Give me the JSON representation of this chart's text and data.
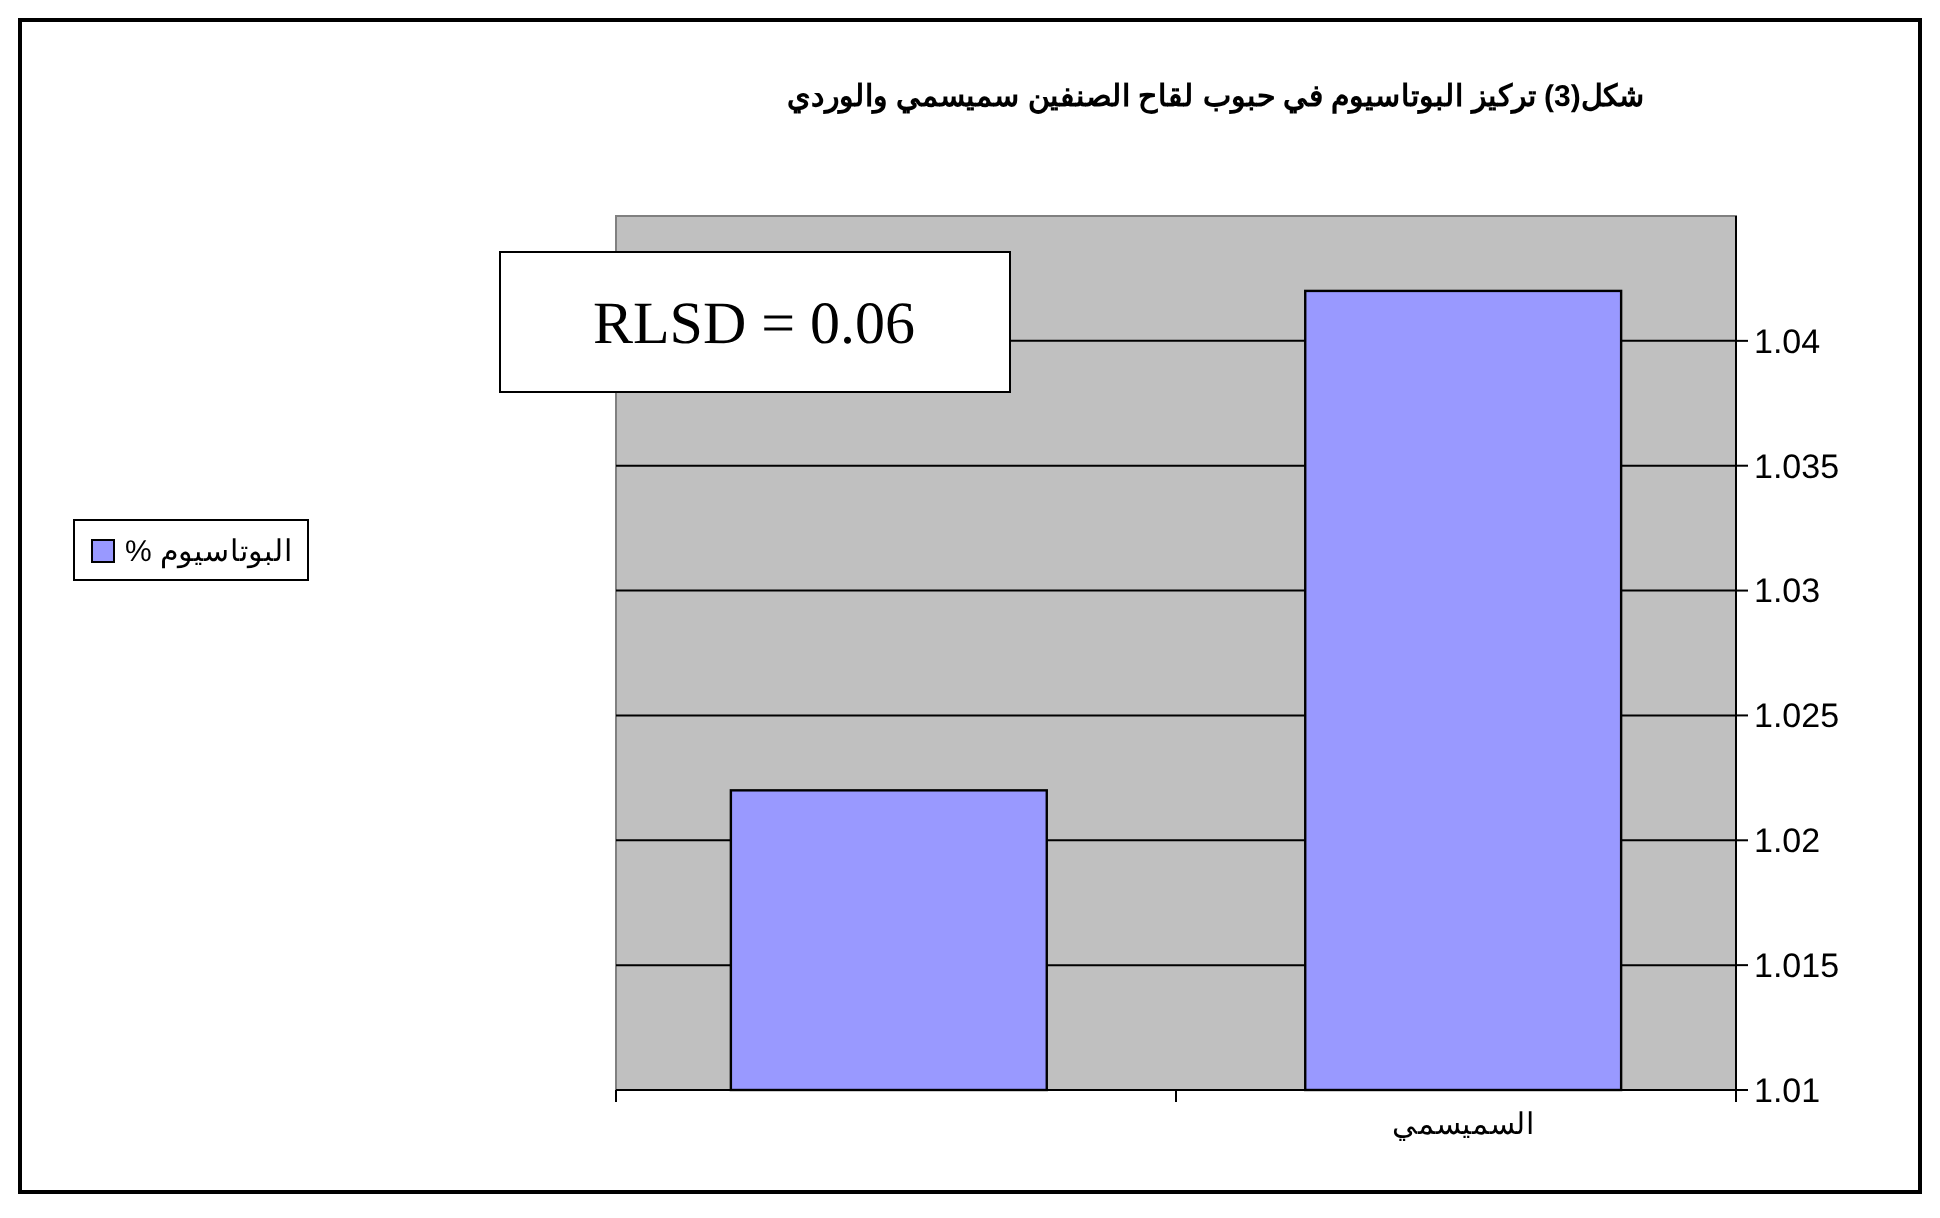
{
  "chart_data": {
    "type": "bar",
    "title": "شكل(3) تركيز البوتاسيوم في حبوب لقاح الصنفين سميسمي والوردي",
    "categories": [
      null,
      "السميسمي"
    ],
    "series": [
      {
        "name": "البوتاسيوم %",
        "color": "#9999ff",
        "values": [
          1.022,
          1.042
        ]
      }
    ],
    "ylim": [
      1.01,
      1.045
    ],
    "yticks": [
      1.01,
      1.015,
      1.02,
      1.025,
      1.03,
      1.035,
      1.04
    ],
    "grid": "y",
    "legend": "left",
    "annotations": [
      "RLSD = 0.06"
    ]
  }
}
